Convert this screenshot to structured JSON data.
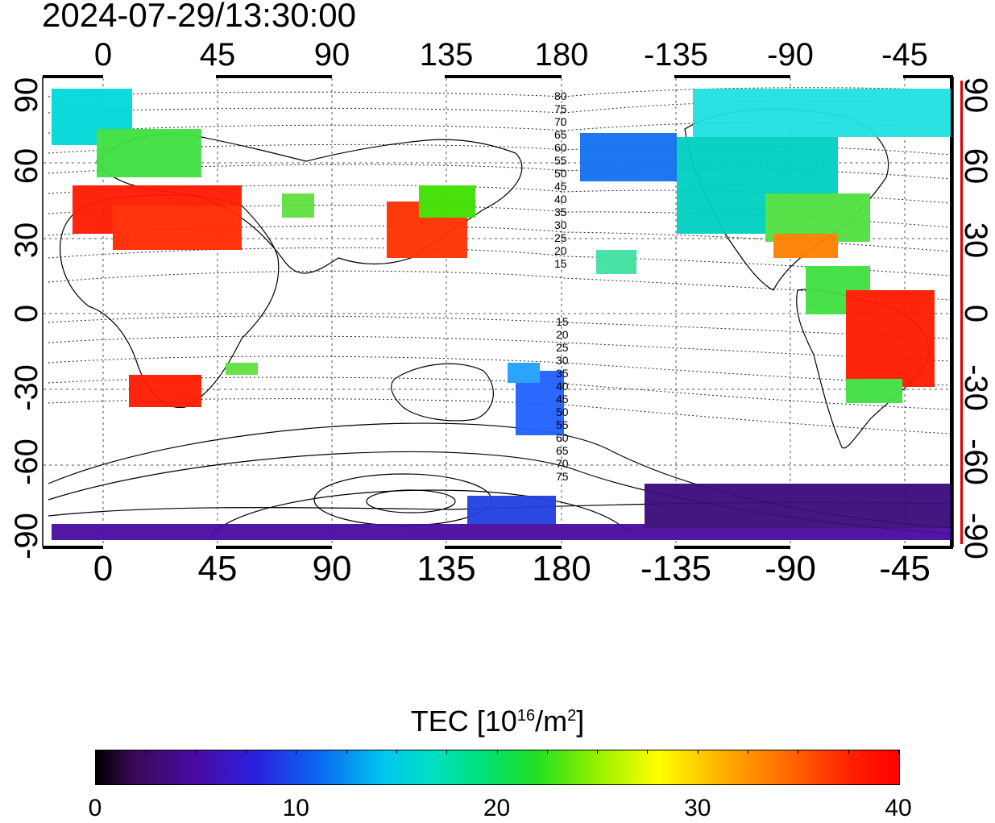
{
  "title": "2024-07-29/13:30:00",
  "top_ticks": [
    "0",
    "45",
    "90",
    "135",
    "180",
    "-135",
    "-90",
    "-45"
  ],
  "bottom_ticks": [
    "0",
    "45",
    "90",
    "135",
    "180",
    "-135",
    "-90",
    "-45"
  ],
  "left_ticks": [
    "90",
    "60",
    "30",
    "0",
    "-30",
    "-60",
    "-90"
  ],
  "right_ticks": [
    "90",
    "60",
    "30",
    "0",
    "-30",
    "-60",
    "-90"
  ],
  "contour_labels_north": [
    "80",
    "75",
    "70",
    "65",
    "60",
    "55",
    "50",
    "45",
    "40",
    "35",
    "30",
    "25",
    "20",
    "15"
  ],
  "contour_labels_south": [
    "15",
    "20",
    "25",
    "30",
    "35",
    "40",
    "45",
    "50",
    "55",
    "60",
    "65",
    "70",
    "75"
  ],
  "colorbar": {
    "label_main": "TEC  [10",
    "label_sup1": "16",
    "label_mid": "/m",
    "label_sup2": "2",
    "label_end": "]",
    "ticks": [
      "0",
      "10",
      "20",
      "30",
      "40"
    ],
    "range": [
      0,
      40
    ]
  },
  "colors": {
    "lowest": "#000000",
    "low": "#4a0aa0",
    "mid_low": "#0a6af0",
    "mid": "#00e0c0",
    "mid_high": "#22e020",
    "high": "#ffff00",
    "highest": "#ff0000"
  }
}
